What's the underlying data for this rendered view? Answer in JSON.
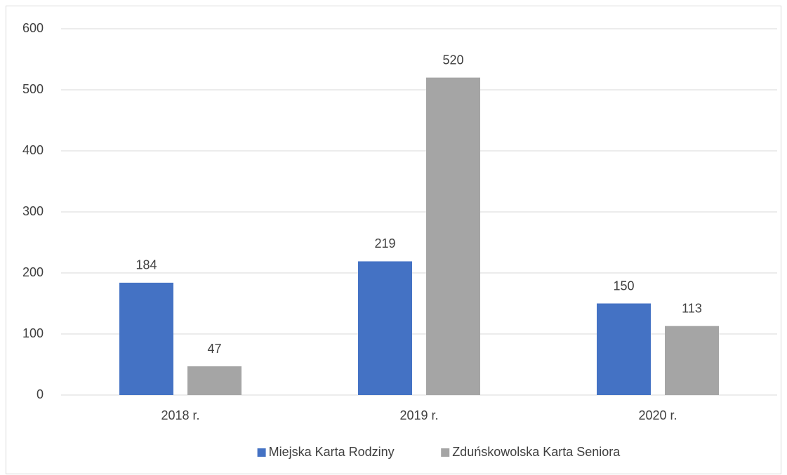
{
  "chart_data": {
    "type": "bar",
    "categories": [
      "2018 r.",
      "2019 r.",
      "2020 r."
    ],
    "series": [
      {
        "name": "Miejska Karta Rodziny",
        "color": "#4472c4",
        "values": [
          184,
          219,
          150
        ]
      },
      {
        "name": "Zduńskowolska Karta Seniora",
        "color": "#a5a5a5",
        "values": [
          47,
          520,
          113
        ]
      }
    ],
    "ylim": [
      0,
      600
    ],
    "yticks": [
      0,
      100,
      200,
      300,
      400,
      500,
      600
    ],
    "grid": true,
    "legend": "bottom"
  }
}
